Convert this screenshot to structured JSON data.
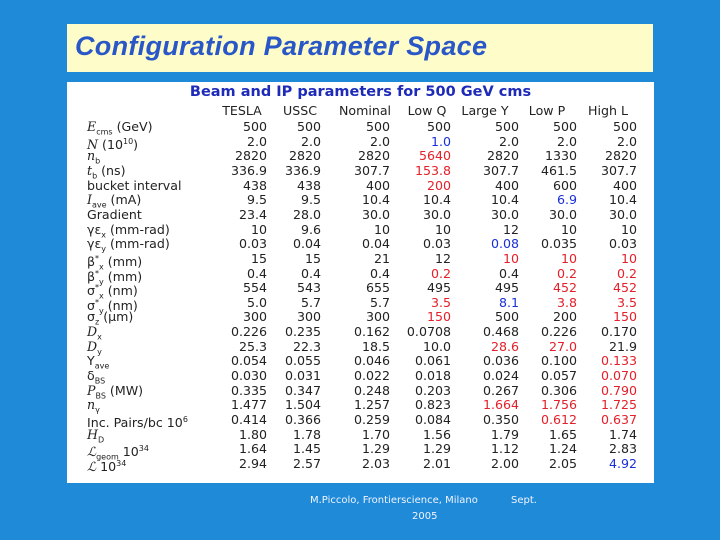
{
  "slide": {
    "title": "Configuration Parameter Space",
    "table_heading": "Beam and IP parameters for 500 GeV cms",
    "columns": [
      "TESLA",
      "USSC",
      "Nominal",
      "Low Q",
      "Large Y",
      "Low P",
      "High L"
    ],
    "rows": [
      {
        "label": "E_cms (GeV)",
        "values": [
          "500",
          "500",
          "500",
          "500",
          "500",
          "500",
          "500"
        ]
      },
      {
        "label": "N (10^10)",
        "values": [
          "2.0",
          "2.0",
          "2.0",
          "1.0",
          "2.0",
          "2.0",
          "2.0"
        ]
      },
      {
        "label": "n_b",
        "values": [
          "2820",
          "2820",
          "2820",
          "5640",
          "2820",
          "1330",
          "2820"
        ]
      },
      {
        "label": "t_b (ns)",
        "values": [
          "336.9",
          "336.9",
          "307.7",
          "153.8",
          "307.7",
          "461.5",
          "307.7"
        ]
      },
      {
        "label": "bucket interval",
        "values": [
          "438",
          "438",
          "400",
          "200",
          "400",
          "600",
          "400"
        ]
      },
      {
        "label": "I_ave (mA)",
        "values": [
          "9.5",
          "9.5",
          "10.4",
          "10.4",
          "10.4",
          "6.9",
          "10.4"
        ]
      },
      {
        "label": "Gradient",
        "values": [
          "23.4",
          "28.0",
          "30.0",
          "30.0",
          "30.0",
          "30.0",
          "30.0"
        ]
      },
      {
        "label": "γε_x (mm-rad)",
        "values": [
          "10",
          "9.6",
          "10",
          "10",
          "12",
          "10",
          "10"
        ]
      },
      {
        "label": "γε_y (mm-rad)",
        "values": [
          "0.03",
          "0.04",
          "0.04",
          "0.03",
          "0.08",
          "0.035",
          "0.03"
        ]
      },
      {
        "label": "β*_x (mm)",
        "values": [
          "15",
          "15",
          "21",
          "12",
          "10",
          "10",
          "10"
        ]
      },
      {
        "label": "β*_y (mm)",
        "values": [
          "0.4",
          "0.4",
          "0.4",
          "0.2",
          "0.4",
          "0.2",
          "0.2"
        ]
      },
      {
        "label": "σ*_x (nm)",
        "values": [
          "554",
          "543",
          "655",
          "495",
          "495",
          "452",
          "452"
        ]
      },
      {
        "label": "σ*_y (nm)",
        "values": [
          "5.0",
          "5.7",
          "5.7",
          "3.5",
          "8.1",
          "3.8",
          "3.5"
        ]
      },
      {
        "label": "σ_z (μm)",
        "values": [
          "300",
          "300",
          "300",
          "150",
          "500",
          "200",
          "150"
        ]
      },
      {
        "label": "D_x",
        "values": [
          "0.226",
          "0.235",
          "0.162",
          "0.0708",
          "0.468",
          "0.226",
          "0.170"
        ]
      },
      {
        "label": "D_y",
        "values": [
          "25.3",
          "22.3",
          "18.5",
          "10.0",
          "28.6",
          "27.0",
          "21.9"
        ]
      },
      {
        "label": "Υ_ave",
        "values": [
          "0.054",
          "0.055",
          "0.046",
          "0.061",
          "0.036",
          "0.100",
          "0.133"
        ]
      },
      {
        "label": "δ_BS",
        "values": [
          "0.030",
          "0.031",
          "0.022",
          "0.018",
          "0.024",
          "0.057",
          "0.070"
        ]
      },
      {
        "label": "P_BS (MW)",
        "values": [
          "0.335",
          "0.347",
          "0.248",
          "0.203",
          "0.267",
          "0.306",
          "0.790"
        ]
      },
      {
        "label": "n_γ",
        "values": [
          "1.477",
          "1.504",
          "1.257",
          "0.823",
          "1.664",
          "1.756",
          "1.725"
        ]
      },
      {
        "label": "Inc. Pairs/bc 10^6",
        "values": [
          "0.414",
          "0.366",
          "0.259",
          "0.084",
          "0.350",
          "0.612",
          "0.637"
        ]
      },
      {
        "label": "H_D",
        "values": [
          "1.80",
          "1.78",
          "1.70",
          "1.56",
          "1.79",
          "1.65",
          "1.74"
        ]
      },
      {
        "label": "L_geom 10^34",
        "values": [
          "1.64",
          "1.45",
          "1.29",
          "1.29",
          "1.12",
          "1.24",
          "2.83"
        ]
      },
      {
        "label": "L 10^34",
        "values": [
          "2.94",
          "2.57",
          "2.03",
          "2.01",
          "2.00",
          "2.05",
          "4.92"
        ]
      }
    ],
    "footer_line1": "M.Piccolo, Frontierscience, Milano",
    "footer_line1b": "Sept.",
    "footer_line2": "2005"
  },
  "colors": {
    "background": "#1f8ad8",
    "title_bar": "#fefcc8",
    "title_text": "#2a57c8",
    "heading_text": "#1d2bb8",
    "default_value": "#222222",
    "highlight_red": "#e4202a",
    "highlight_blue": "#1a2fd8"
  },
  "highlights": {
    "red": [
      [
        2,
        3
      ],
      [
        3,
        3
      ],
      [
        4,
        3
      ],
      [
        9,
        4
      ],
      [
        9,
        5
      ],
      [
        9,
        6
      ],
      [
        10,
        3
      ],
      [
        10,
        5
      ],
      [
        10,
        6
      ],
      [
        11,
        5
      ],
      [
        11,
        6
      ],
      [
        12,
        3
      ],
      [
        12,
        5
      ],
      [
        12,
        6
      ],
      [
        13,
        3
      ],
      [
        13,
        6
      ],
      [
        15,
        4
      ],
      [
        15,
        5
      ],
      [
        16,
        6
      ],
      [
        17,
        6
      ],
      [
        18,
        6
      ],
      [
        19,
        4
      ],
      [
        19,
        5
      ],
      [
        19,
        6
      ],
      [
        20,
        5
      ],
      [
        20,
        6
      ]
    ],
    "blue": [
      [
        1,
        3
      ],
      [
        5,
        5
      ],
      [
        8,
        4
      ],
      [
        12,
        4
      ],
      [
        23,
        6
      ]
    ]
  }
}
